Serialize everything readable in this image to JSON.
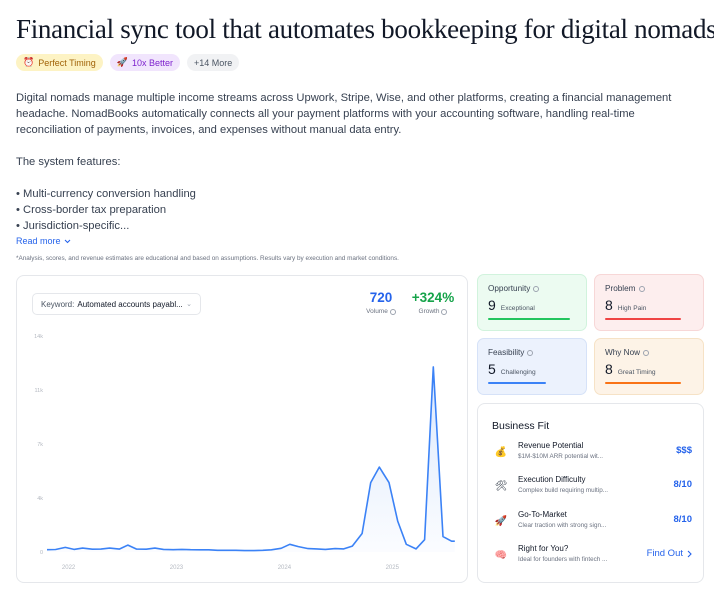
{
  "title": "Financial sync tool that automates bookkeeping for digital nomads",
  "badges": [
    {
      "icon": "alarm-clock-icon",
      "label": "Perfect Timing"
    },
    {
      "icon": "rocket-icon",
      "label": "10x Better"
    },
    {
      "label": "+14 More"
    }
  ],
  "description": {
    "paragraph": "Digital nomads manage multiple income streams across Upwork, Stripe, Wise, and other platforms, creating a financial management headache. NomadBooks automatically connects all your payment platforms with your accounting software, handling real-time reconciliation of payments, invoices, and expenses without manual data entry.",
    "features_intro": "The system features:",
    "features": [
      "• Multi-currency conversion handling",
      "• Cross-border tax preparation",
      "• Jurisdiction-specific..."
    ]
  },
  "read_more": "Read more",
  "disclaimer": "*Analysis, scores, and revenue estimates are educational and based on assumptions. Results vary by execution and market conditions.",
  "keyword": {
    "label": "Keyword:",
    "value": "Automated accounts payabl..."
  },
  "metrics": {
    "volume": {
      "value": "720",
      "label": "Volume"
    },
    "growth": {
      "value": "+324%",
      "label": "Growth"
    }
  },
  "chart_data": {
    "type": "area",
    "y_tick_labels": [
      "0",
      "4k",
      "7k",
      "11k",
      "14k"
    ],
    "y_tick_values": [
      0,
      3500,
      7000,
      10500,
      14000
    ],
    "ylim": [
      0,
      14000
    ],
    "x_tick_labels": [
      "2022",
      "2023",
      "2024",
      "2025"
    ],
    "x_tick_positions": [
      2022.2,
      2023.2,
      2024.2,
      2025.2
    ],
    "xlim": [
      2022.0,
      2025.8
    ],
    "grid": false,
    "series": [
      {
        "x": [
          2022.0,
          2022.08,
          2022.17,
          2022.25,
          2022.33,
          2022.42,
          2022.5,
          2022.58,
          2022.67,
          2022.75,
          2022.83,
          2022.92,
          2023.0,
          2023.08,
          2023.17,
          2023.25,
          2023.33,
          2023.42,
          2023.5,
          2023.58,
          2023.67,
          2023.75,
          2023.83,
          2023.92,
          2024.0,
          2024.08,
          2024.17,
          2024.25,
          2024.33,
          2024.42,
          2024.5,
          2024.58,
          2024.67,
          2024.75,
          2024.83,
          2024.92,
          2025.0,
          2025.08,
          2025.17,
          2025.25,
          2025.33,
          2025.42,
          2025.5,
          2025.58,
          2025.67,
          2025.75,
          2025.78
        ],
        "values": [
          150,
          160,
          300,
          170,
          250,
          180,
          190,
          250,
          190,
          450,
          190,
          180,
          250,
          170,
          150,
          170,
          150,
          140,
          140,
          110,
          110,
          110,
          90,
          90,
          110,
          140,
          240,
          500,
          350,
          220,
          200,
          170,
          220,
          200,
          380,
          1200,
          4500,
          5500,
          4500,
          2000,
          500,
          200,
          800,
          12000,
          1000,
          700,
          700
        ]
      }
    ]
  },
  "scores": {
    "opportunity": {
      "label": "Opportunity",
      "value": "9",
      "sub": "Exceptional",
      "fill": 0.9
    },
    "problem": {
      "label": "Problem",
      "value": "8",
      "sub": "High Pain",
      "fill": 0.8
    },
    "feasibility": {
      "label": "Feasibility",
      "value": "5",
      "sub": "Challenging",
      "fill": 0.5
    },
    "why_now": {
      "label": "Why Now",
      "value": "8",
      "sub": "Great Timing",
      "fill": 0.8
    }
  },
  "business_fit": {
    "title": "Business Fit",
    "rows": [
      {
        "icon": "money-bag-icon",
        "title": "Revenue Potential",
        "desc": "$1M-$10M ARR potential wit...",
        "value": "$$$"
      },
      {
        "icon": "tools-icon",
        "title": "Execution Difficulty",
        "desc": "Complex build requiring multip...",
        "value": "8/10"
      },
      {
        "icon": "rocket-icon",
        "title": "Go-To-Market",
        "desc": "Clear traction with strong sign...",
        "value": "8/10"
      },
      {
        "icon": "brain-icon",
        "title": "Right for You?",
        "desc": "Ideal for founders with fintech ...",
        "value": "Find Out"
      }
    ]
  }
}
